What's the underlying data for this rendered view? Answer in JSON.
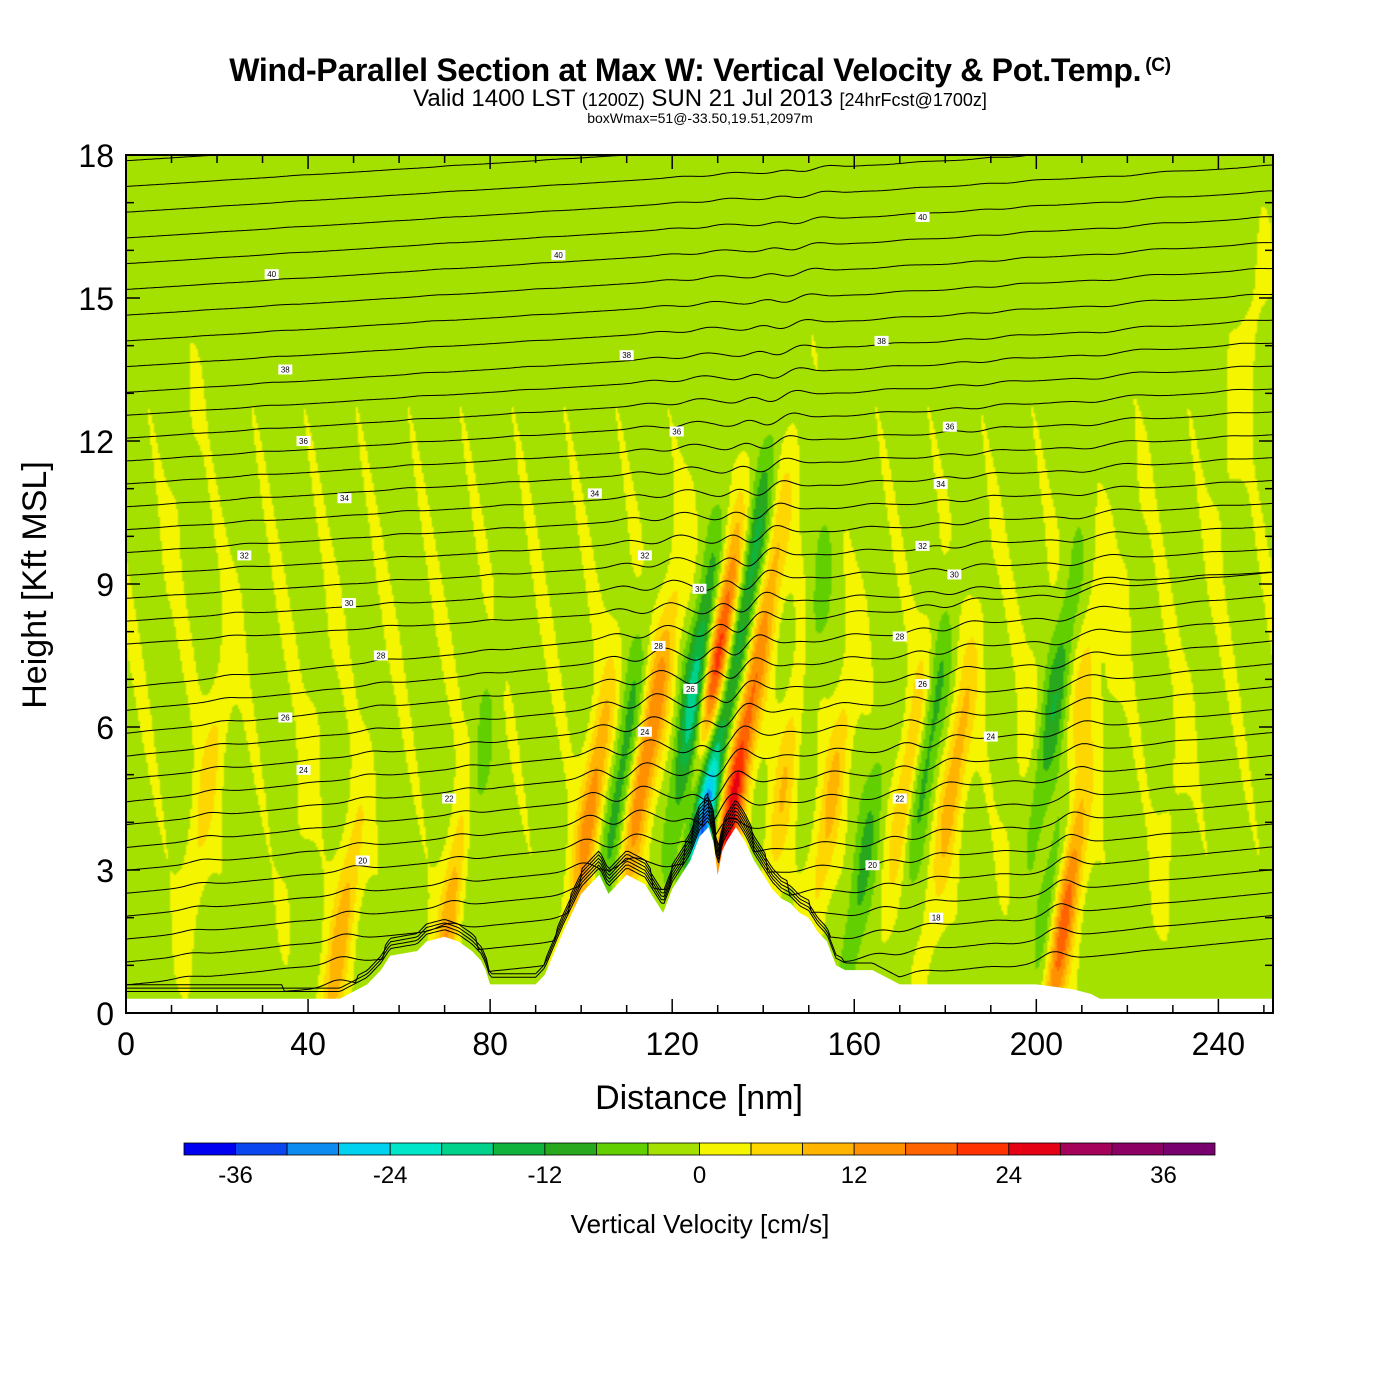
{
  "header": {
    "title": "Wind-Parallel Section at Max W: Vertical Velocity & Pot.Temp.",
    "copyright_mark": "(C)",
    "valid_prefix": "Valid 1400 LST",
    "valid_utc": "(1200Z)",
    "valid_date": "SUN 21 Jul 2013",
    "forecast": "[24hrFcst@1700z]",
    "box_info": "boxWmax=51@-33.50,19.51,2097m"
  },
  "chart_data": {
    "type": "heatmap",
    "xlabel": "Distance [nm]",
    "ylabel": "Height [Kft MSL]",
    "xlim": [
      0,
      252
    ],
    "ylim": [
      0,
      18
    ],
    "x_ticks": [
      0,
      40,
      80,
      120,
      160,
      200,
      240
    ],
    "y_ticks": [
      0,
      3,
      6,
      9,
      12,
      15,
      18
    ],
    "grid": false,
    "colorbar": {
      "title": "Vertical Velocity [cm/s]",
      "range": [
        -40,
        40
      ],
      "bin_size": 4,
      "tick_values": [
        -36,
        -24,
        -12,
        0,
        12,
        24,
        36
      ],
      "colors": [
        "#0000f0",
        "#0a46f0",
        "#0c8cf0",
        "#00d2f0",
        "#00e6c8",
        "#00d28c",
        "#10b43c",
        "#28a81c",
        "#62d000",
        "#a4e000",
        "#f5f500",
        "#ffd700",
        "#ffb400",
        "#ff9100",
        "#ff6400",
        "#ff3200",
        "#e60014",
        "#a5005a",
        "#8c0064",
        "#78006e"
      ]
    },
    "field": {
      "background_value": -1,
      "features": [
        {
          "x": 205,
          "y": 3.5,
          "w_cm_s": -10
        },
        {
          "x": 206,
          "y": 1.9,
          "w_cm_s": 20
        },
        {
          "x": 146,
          "y": 5.5,
          "w_cm_s": 12
        },
        {
          "x": 18,
          "y": 4.8,
          "w_cm_s": 7
        },
        {
          "x": 12,
          "y": 11,
          "w_cm_s": 1
        },
        {
          "x": 40,
          "y": 5,
          "w_cm_s": 2
        },
        {
          "x": 72,
          "y": 2.4,
          "w_cm_s": 20
        },
        {
          "x": 47,
          "y": 1.5,
          "w_cm_s": 12
        },
        {
          "x": 75,
          "y": 3.8,
          "w_cm_s": -12
        },
        {
          "x": 102,
          "y": 4.2,
          "w_cm_s": 16
        },
        {
          "x": 109,
          "y": 5.0,
          "w_cm_s": -10
        },
        {
          "x": 113,
          "y": 4.8,
          "w_cm_s": 14
        },
        {
          "x": 118,
          "y": 7.0,
          "w_cm_s": 8
        },
        {
          "x": 125,
          "y": 6.8,
          "w_cm_s": -18
        },
        {
          "x": 127,
          "y": 4.2,
          "w_cm_s": -36
        },
        {
          "x": 130,
          "y": 7.2,
          "w_cm_s": 30
        },
        {
          "x": 133,
          "y": 4.2,
          "w_cm_s": 26
        },
        {
          "x": 137,
          "y": 9.0,
          "w_cm_s": -14
        },
        {
          "x": 141,
          "y": 8.5,
          "w_cm_s": 12
        },
        {
          "x": 150,
          "y": 7.5,
          "w_cm_s": -8
        },
        {
          "x": 155,
          "y": 4.5,
          "w_cm_s": 10
        },
        {
          "x": 162,
          "y": 3.0,
          "w_cm_s": -8
        },
        {
          "x": 172,
          "y": 5.0,
          "w_cm_s": 10
        },
        {
          "x": 176,
          "y": 5.5,
          "w_cm_s": -10
        },
        {
          "x": 182,
          "y": 5.0,
          "w_cm_s": 12
        },
        {
          "x": 198,
          "y": 6.0,
          "w_cm_s": 2
        },
        {
          "x": 204,
          "y": 6.5,
          "w_cm_s": -10
        },
        {
          "x": 209,
          "y": 6.0,
          "w_cm_s": 10
        },
        {
          "x": 218,
          "y": 8.0,
          "w_cm_s": 2
        },
        {
          "x": 245,
          "y": 13,
          "w_cm_s": 3
        },
        {
          "x": 230,
          "y": 4.5,
          "w_cm_s": 2
        }
      ]
    },
    "terrain": {
      "x": [
        0,
        20,
        40,
        47,
        53,
        56,
        58,
        64,
        66,
        70,
        73,
        76,
        78,
        79,
        80,
        90,
        92,
        96,
        100,
        104,
        106,
        108,
        110,
        112,
        114,
        116,
        118,
        120,
        122,
        124,
        126,
        128,
        129,
        130,
        131,
        132,
        134,
        136,
        138,
        140,
        142,
        144,
        146,
        148,
        150,
        152,
        154,
        156,
        158,
        160,
        164,
        170,
        180,
        190,
        200,
        208,
        212,
        214,
        220,
        230,
        240,
        252
      ],
      "y": [
        0.3,
        0.3,
        0.3,
        0.3,
        0.6,
        0.9,
        1.2,
        1.3,
        1.5,
        1.6,
        1.5,
        1.3,
        1.1,
        0.9,
        0.6,
        0.6,
        0.8,
        1.7,
        2.5,
        2.9,
        2.5,
        2.7,
        2.9,
        2.8,
        2.7,
        2.4,
        2.1,
        2.6,
        2.9,
        3.2,
        3.7,
        3.9,
        3.6,
        2.9,
        3.4,
        3.6,
        3.9,
        3.6,
        3.2,
        2.9,
        2.6,
        2.4,
        2.3,
        2.1,
        2.0,
        1.7,
        1.5,
        1.0,
        0.9,
        0.9,
        0.9,
        0.6,
        0.6,
        0.6,
        0.6,
        0.5,
        0.4,
        0.3,
        0.3,
        0.3,
        0.3,
        0.3
      ]
    },
    "theta_isotherms": {
      "unit": "degC potential temperature",
      "labeled_values": [
        {
          "label": "40",
          "x": 32,
          "y": 15.5
        },
        {
          "label": "40",
          "x": 95,
          "y": 15.9
        },
        {
          "label": "40",
          "x": 175,
          "y": 16.7
        },
        {
          "label": "38",
          "x": 35,
          "y": 13.5
        },
        {
          "label": "38",
          "x": 110,
          "y": 13.8
        },
        {
          "label": "38",
          "x": 166,
          "y": 14.1
        },
        {
          "label": "36",
          "x": 39,
          "y": 12.0
        },
        {
          "label": "36",
          "x": 121,
          "y": 12.2
        },
        {
          "label": "36",
          "x": 181,
          "y": 12.3
        },
        {
          "label": "34",
          "x": 48,
          "y": 10.8
        },
        {
          "label": "34",
          "x": 103,
          "y": 10.9
        },
        {
          "label": "34",
          "x": 179,
          "y": 11.1
        },
        {
          "label": "32",
          "x": 26,
          "y": 9.6
        },
        {
          "label": "32",
          "x": 114,
          "y": 9.6
        },
        {
          "label": "32",
          "x": 175,
          "y": 9.8
        },
        {
          "label": "30",
          "x": 49,
          "y": 8.6
        },
        {
          "label": "30",
          "x": 126,
          "y": 8.9
        },
        {
          "label": "30",
          "x": 182,
          "y": 9.2
        },
        {
          "label": "28",
          "x": 56,
          "y": 7.5
        },
        {
          "label": "28",
          "x": 117,
          "y": 7.7
        },
        {
          "label": "28",
          "x": 170,
          "y": 7.9
        },
        {
          "label": "26",
          "x": 35,
          "y": 6.2
        },
        {
          "label": "26",
          "x": 124,
          "y": 6.8
        },
        {
          "label": "26",
          "x": 175,
          "y": 6.9
        },
        {
          "label": "24",
          "x": 39,
          "y": 5.1
        },
        {
          "label": "24",
          "x": 114,
          "y": 5.9
        },
        {
          "label": "24",
          "x": 190,
          "y": 5.8
        },
        {
          "label": "22",
          "x": 71,
          "y": 4.5
        },
        {
          "label": "22",
          "x": 170,
          "y": 4.5
        },
        {
          "label": "20",
          "x": 52,
          "y": 3.2
        },
        {
          "label": "20",
          "x": 164,
          "y": 3.1
        },
        {
          "label": "18",
          "x": 178,
          "y": 2.0
        }
      ]
    }
  }
}
